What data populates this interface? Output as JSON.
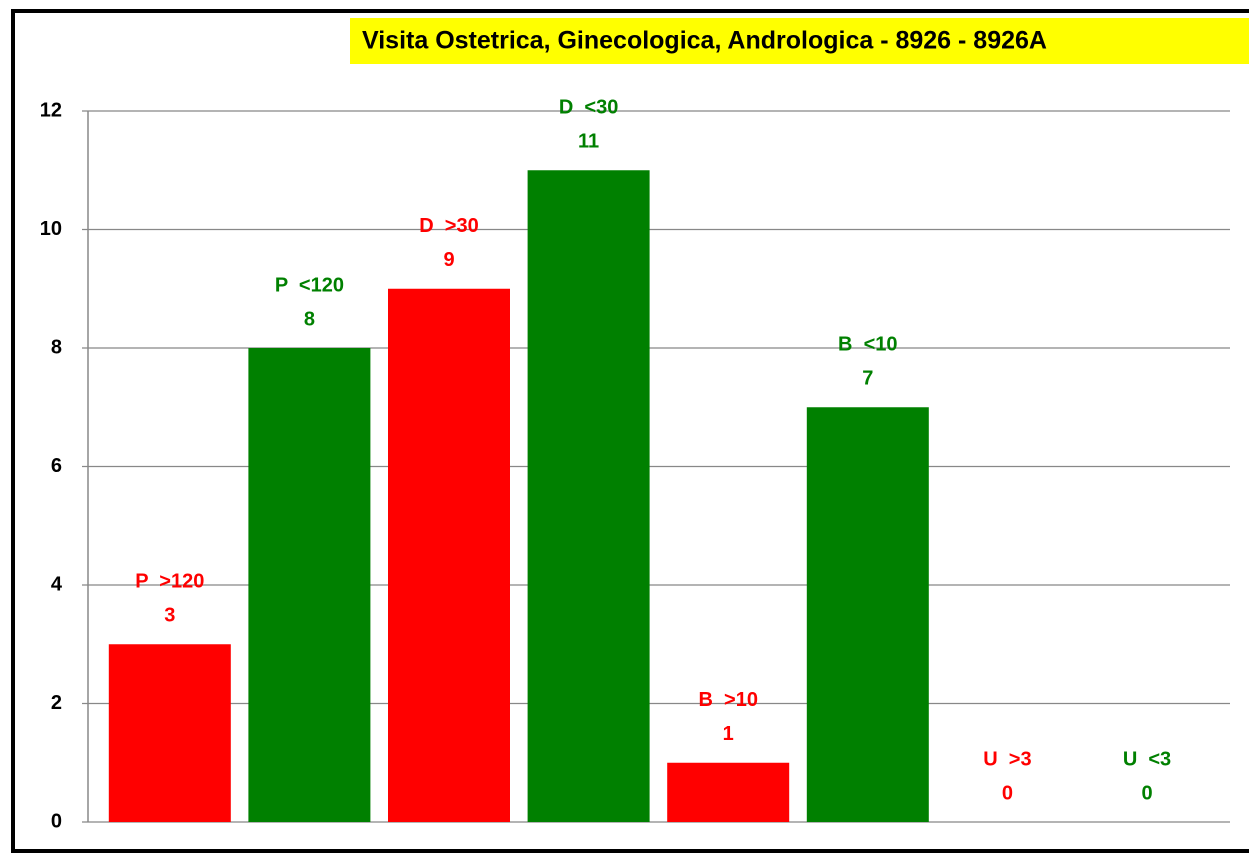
{
  "chart_data": {
    "type": "bar",
    "title": "Visita Ostetrica, Ginecologica, Andrologica - 8926  - 8926A",
    "categories": [
      "P  >120",
      "P  <120",
      "D  >30",
      "D  <30",
      "B  >10",
      "B  <10",
      "U  >3",
      "U  <3"
    ],
    "values": [
      3,
      8,
      9,
      11,
      1,
      7,
      0,
      0
    ],
    "colors": [
      "#ff0000",
      "#008000",
      "#ff0000",
      "#008000",
      "#ff0000",
      "#008000",
      "#ff0000",
      "#008000"
    ],
    "ylim": [
      0,
      12
    ],
    "yticks": [
      0,
      2,
      4,
      6,
      8,
      10,
      12
    ],
    "grid": true
  }
}
